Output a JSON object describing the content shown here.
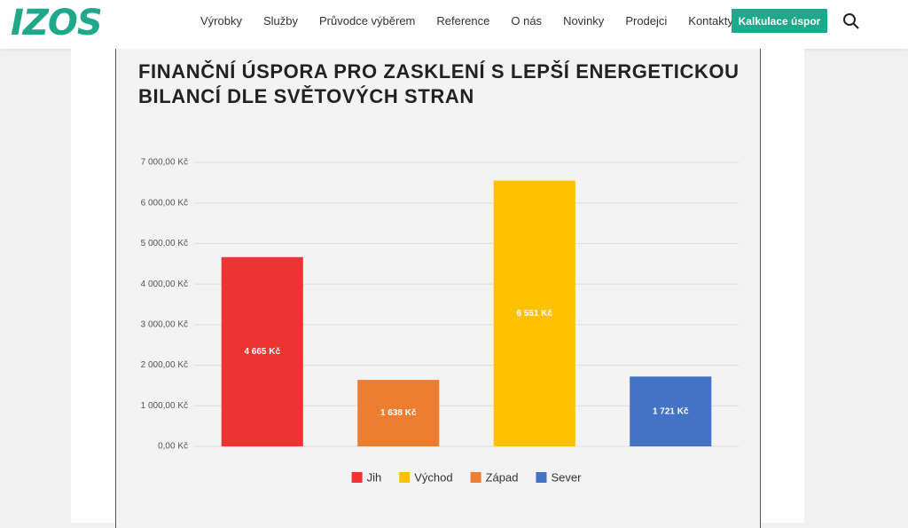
{
  "header": {
    "logo": "IZOS",
    "nav": [
      "Výrobky",
      "Služby",
      "Průvodce výběrem",
      "Reference",
      "O nás",
      "Novinky",
      "Prodejci",
      "Kontakty"
    ],
    "button": "Kalkulace úspor"
  },
  "chart_data": {
    "type": "bar",
    "title": "FINANČNÍ ÚSPORA PRO ZASKLENÍ S LEPŠÍ ENERGETICKOU BILANCÍ DLE SVĚTOVÝCH STRAN",
    "categories": [
      null,
      null,
      null,
      null
    ],
    "series": [
      {
        "name": "Jih",
        "color": "#ee3333",
        "values": [
          4665,
          null,
          null,
          null
        ],
        "value_labels": [
          "4 665 Kč",
          null,
          null,
          null
        ]
      },
      {
        "name": "Východ",
        "color": "#ffc000",
        "values": [
          null,
          null,
          6551,
          null
        ],
        "value_labels": [
          null,
          null,
          "6 551 Kč",
          null
        ]
      },
      {
        "name": "Západ",
        "color": "#ed7d31",
        "values": [
          null,
          1638,
          null,
          null
        ],
        "value_labels": [
          null,
          "1 638 Kč",
          null,
          null
        ]
      },
      {
        "name": "Sever",
        "color": "#4472c4",
        "values": [
          null,
          null,
          null,
          1721
        ],
        "value_labels": [
          null,
          null,
          null,
          "1 721 Kč"
        ]
      }
    ],
    "ylim": [
      0,
      7000
    ],
    "yticks": [
      {
        "value": 0,
        "label": "0,00 Kč"
      },
      {
        "value": 1000,
        "label": "1 000,00 Kč"
      },
      {
        "value": 2000,
        "label": "2 000,00 Kč"
      },
      {
        "value": 3000,
        "label": "3 000,00 Kč"
      },
      {
        "value": 4000,
        "label": "4 000,00 Kč"
      },
      {
        "value": 5000,
        "label": "5 000,00 Kč"
      },
      {
        "value": 6000,
        "label": "6 000,00 Kč"
      },
      {
        "value": 7000,
        "label": "7 000,00 Kč"
      }
    ],
    "grid": true,
    "legend": "bottom"
  }
}
